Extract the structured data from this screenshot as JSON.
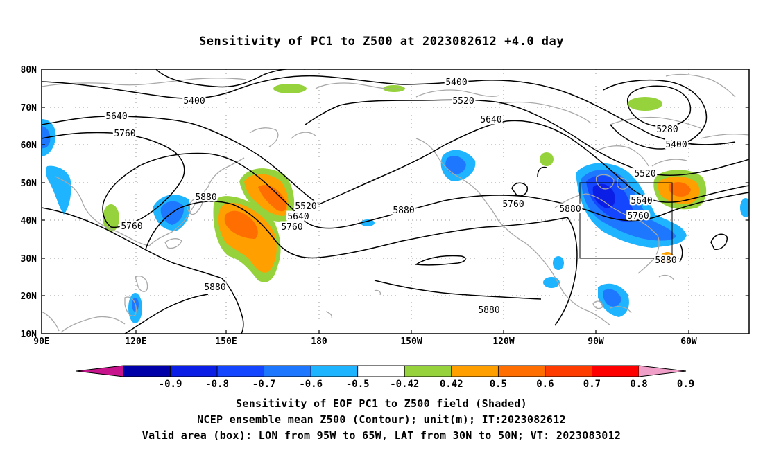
{
  "title": "Sensitivity of PC1 to Z500 at 2023082612 +4.0 day",
  "map": {
    "lat_labels": [
      "80N",
      "70N",
      "60N",
      "50N",
      "40N",
      "30N",
      "20N",
      "10N"
    ],
    "lon_labels": [
      "90E",
      "120E",
      "150E",
      "180",
      "150W",
      "120W",
      "90W",
      "60W"
    ],
    "contour_labels": [
      "5400",
      "5400",
      "5520",
      "5640",
      "5640",
      "5760",
      "5880",
      "5880",
      "5520",
      "5640",
      "5760",
      "5880",
      "5760",
      "5880",
      "5640",
      "5760",
      "5520",
      "5400",
      "5280",
      "5880",
      "5880",
      "5760"
    ],
    "valid_box": {
      "lon": [
        "95W",
        "65W"
      ],
      "lat": [
        "30N",
        "50N"
      ]
    }
  },
  "colorbar": {
    "labels": [
      "-0.9",
      "-0.8",
      "-0.7",
      "-0.6",
      "-0.5",
      "-0.42",
      "0.42",
      "0.5",
      "0.6",
      "0.7",
      "0.8",
      "0.9"
    ],
    "colors": [
      "#0000a8",
      "#0a1ee6",
      "#1446ff",
      "#1e78ff",
      "#1eb4ff",
      "#ffffff",
      "#96d23c",
      "#ffa000",
      "#ff6e00",
      "#ff3c00",
      "#ff0000"
    ],
    "end_low_color": "#c8148c",
    "end_high_color": "#f0a0c8"
  },
  "footer": {
    "line1": "Sensitivity of EOF PC1 to Z500 field (Shaded)",
    "line2": "NCEP ensemble mean Z500 (Contour); unit(m); IT:2023082612",
    "line3": "Valid area (box): LON from 95W to 65W, LAT from 30N to 50N; VT: 2023083012"
  }
}
